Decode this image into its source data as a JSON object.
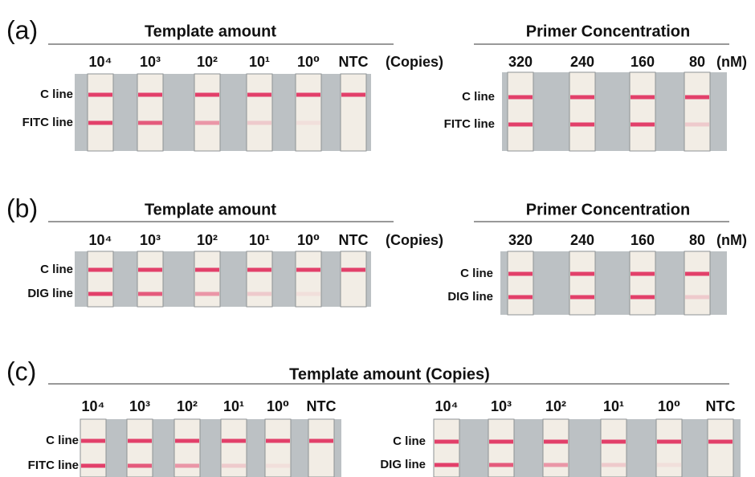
{
  "panels": [
    {
      "label": "(a)",
      "groups": [
        {
          "title": "Template amount",
          "lanes": [
            "10⁴",
            "10³",
            "10²",
            "10¹",
            "10⁰",
            "NTC"
          ],
          "unit": "(Copies)",
          "lines": [
            "C line",
            "FITC line"
          ]
        },
        {
          "title": "Primer Concentration",
          "lanes": [
            "320",
            "240",
            "160",
            "80"
          ],
          "unit": "(nM)",
          "lines": [
            "C line",
            "FITC line"
          ]
        }
      ]
    },
    {
      "label": "(b)",
      "groups": [
        {
          "title": "Template amount",
          "lanes": [
            "10⁴",
            "10³",
            "10²",
            "10¹",
            "10⁰",
            "NTC"
          ],
          "unit": "(Copies)",
          "lines": [
            "C line",
            "DIG line"
          ]
        },
        {
          "title": "Primer Concentration",
          "lanes": [
            "320",
            "240",
            "160",
            "80"
          ],
          "unit": "(nM)",
          "lines": [
            "C line",
            "DIG line"
          ]
        }
      ]
    },
    {
      "label": "(c)",
      "title": "Template amount (Copies)",
      "groups": [
        {
          "lanes": [
            "10⁴",
            "10³",
            "10²",
            "10¹",
            "10⁰",
            "NTC"
          ],
          "lines": [
            "C line",
            "FITC line"
          ]
        },
        {
          "lanes": [
            "10⁴",
            "10³",
            "10²",
            "10¹",
            "10⁰",
            "NTC"
          ],
          "lines": [
            "C line",
            "DIG line"
          ]
        }
      ]
    }
  ]
}
